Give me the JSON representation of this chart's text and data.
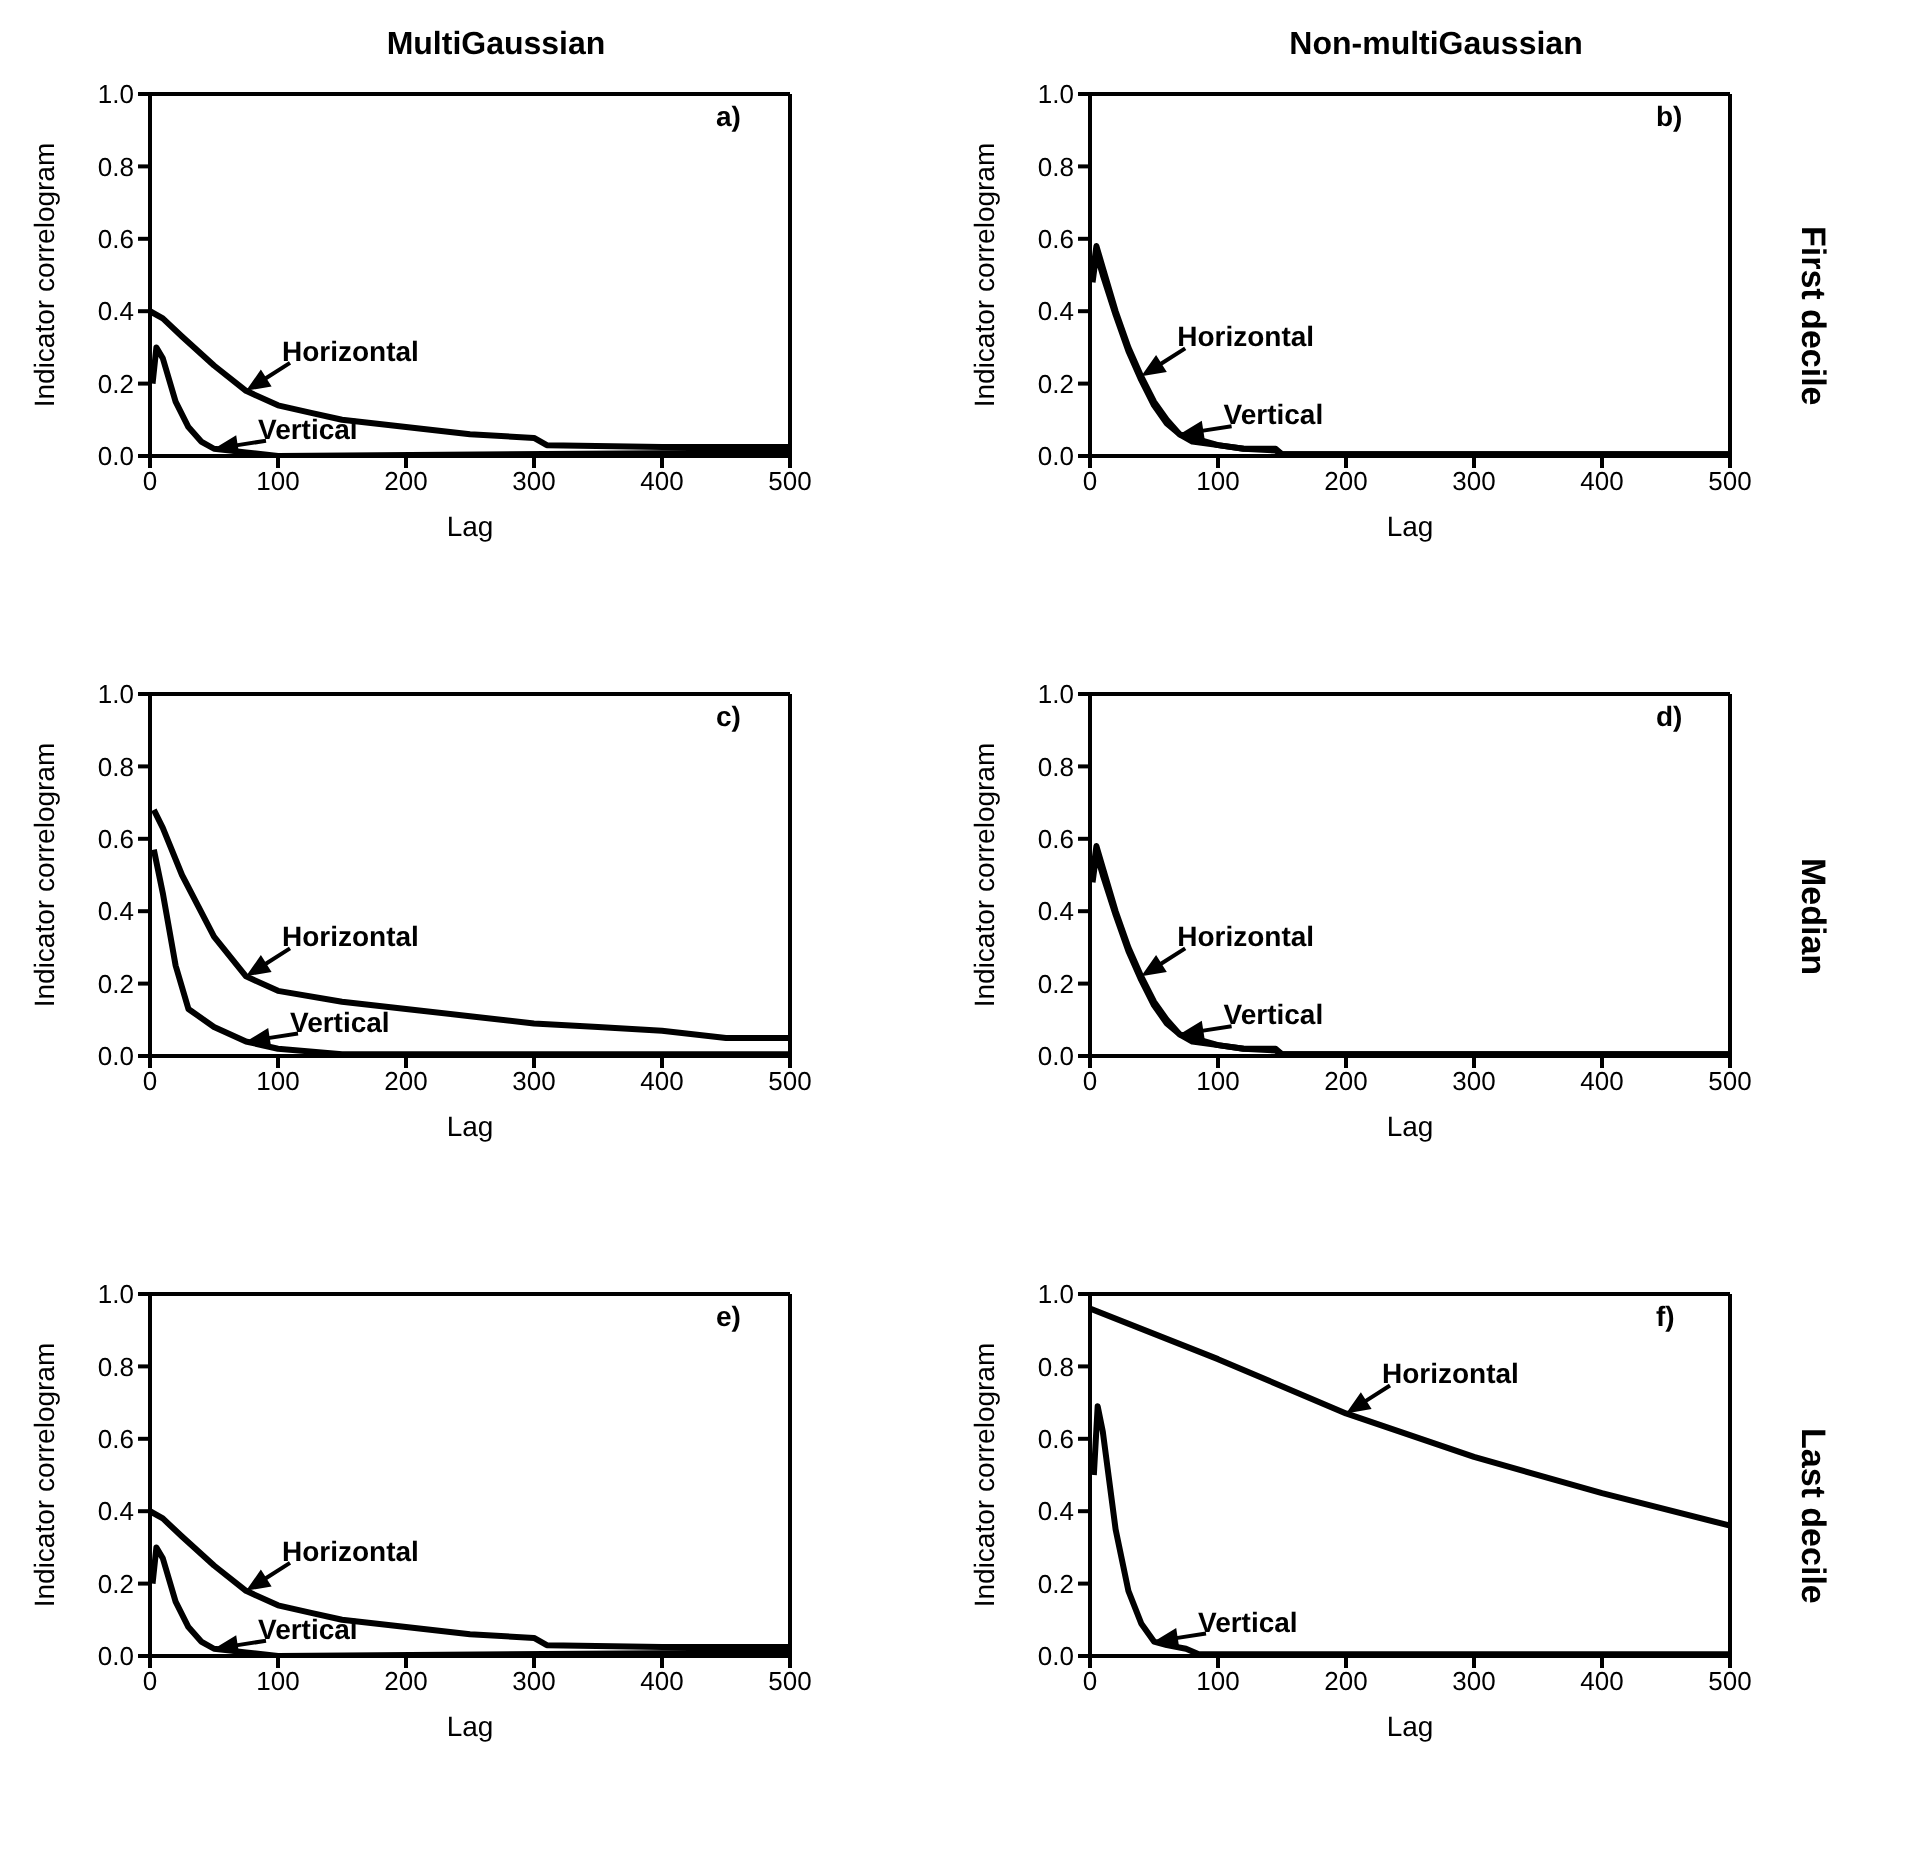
{
  "chart_data": [
    {
      "type": "line",
      "title": "MultiGaussian",
      "xlabel": "Lag",
      "ylabel": "Indicator correlogram",
      "xlim": [
        0,
        500
      ],
      "ylim": [
        0,
        1
      ],
      "xticks": [
        0,
        100,
        200,
        300,
        400,
        500
      ],
      "yticks": [
        {
          "value": 0,
          "label": "0.0"
        },
        {
          "value": 0.2,
          "label": "0.2"
        },
        {
          "value": 0.4,
          "label": "0.4"
        },
        {
          "value": 0.6,
          "label": "0.6"
        },
        {
          "value": 0.8,
          "label": "0.8"
        },
        {
          "value": 1,
          "label": "1.0"
        }
      ],
      "marker": "none",
      "annotations": [
        "a)"
      ],
      "series": [
        {
          "name": "Horizontal",
          "color": "#000000",
          "x": [
            0,
            10,
            25,
            50,
            75,
            100,
            125,
            150,
            200,
            250,
            300,
            310,
            400,
            500
          ],
          "values": [
            0.4,
            0.38,
            0.33,
            0.25,
            0.18,
            0.14,
            0.12,
            0.1,
            0.08,
            0.06,
            0.05,
            0.03,
            0.025,
            0.025
          ]
        },
        {
          "name": "Vertical",
          "color": "#000000",
          "x": [
            2,
            5,
            10,
            20,
            30,
            40,
            50,
            75,
            100,
            500
          ],
          "values": [
            0.2,
            0.3,
            0.27,
            0.15,
            0.08,
            0.04,
            0.02,
            0.01,
            0,
            0.01
          ]
        }
      ]
    },
    {
      "type": "line",
      "title": "Non-multiGaussian",
      "xlabel": "Lag",
      "ylabel": "Indicator correlogram",
      "xlim": [
        0,
        500
      ],
      "ylim": [
        0,
        1
      ],
      "xticks": [
        0,
        100,
        200,
        300,
        400,
        500
      ],
      "yticks": [
        {
          "value": 0,
          "label": "0.0"
        },
        {
          "value": 0.2,
          "label": "0.2"
        },
        {
          "value": 0.4,
          "label": "0.4"
        },
        {
          "value": 0.6,
          "label": "0.6"
        },
        {
          "value": 0.8,
          "label": "0.8"
        },
        {
          "value": 1,
          "label": "1.0"
        }
      ],
      "marker": "none",
      "annotations": [
        "b)",
        "First decile"
      ],
      "series": [
        {
          "name": "Horizontal",
          "color": "#000000",
          "x": [
            2,
            5,
            10,
            20,
            30,
            40,
            50,
            60,
            70,
            80,
            100,
            120,
            145,
            150,
            500
          ],
          "values": [
            0.5,
            0.58,
            0.52,
            0.4,
            0.3,
            0.22,
            0.15,
            0.1,
            0.06,
            0.05,
            0.03,
            0.02,
            0.02,
            0.005,
            0.005
          ]
        },
        {
          "name": "Vertical",
          "color": "#000000",
          "x": [
            2,
            5,
            10,
            20,
            30,
            40,
            50,
            60,
            70,
            80,
            100,
            120,
            145,
            150,
            500
          ],
          "values": [
            0.48,
            0.56,
            0.5,
            0.39,
            0.29,
            0.21,
            0.14,
            0.09,
            0.06,
            0.04,
            0.03,
            0.02,
            0.015,
            0.005,
            0.005
          ]
        }
      ]
    },
    {
      "type": "line",
      "xlabel": "Lag",
      "ylabel": "Indicator correlogram",
      "xlim": [
        0,
        500
      ],
      "ylim": [
        0,
        1
      ],
      "xticks": [
        0,
        100,
        200,
        300,
        400,
        500
      ],
      "yticks": [
        {
          "value": 0,
          "label": "0.0"
        },
        {
          "value": 0.2,
          "label": "0.2"
        },
        {
          "value": 0.4,
          "label": "0.4"
        },
        {
          "value": 0.6,
          "label": "0.6"
        },
        {
          "value": 0.8,
          "label": "0.8"
        },
        {
          "value": 1,
          "label": "1.0"
        }
      ],
      "marker": "none",
      "annotations": [
        "c)"
      ],
      "series": [
        {
          "name": "Horizontal",
          "color": "#000000",
          "x": [
            3,
            10,
            25,
            50,
            75,
            100,
            150,
            200,
            250,
            300,
            350,
            400,
            450,
            500
          ],
          "values": [
            0.68,
            0.63,
            0.5,
            0.33,
            0.22,
            0.18,
            0.15,
            0.13,
            0.11,
            0.09,
            0.08,
            0.07,
            0.05,
            0.05
          ]
        },
        {
          "name": "Vertical",
          "color": "#000000",
          "x": [
            3,
            10,
            20,
            30,
            50,
            75,
            100,
            150,
            500
          ],
          "values": [
            0.57,
            0.45,
            0.25,
            0.13,
            0.08,
            0.04,
            0.02,
            0.005,
            0.005
          ]
        }
      ]
    },
    {
      "type": "line",
      "xlabel": "Lag",
      "ylabel": "Indicator correlogram",
      "xlim": [
        0,
        500
      ],
      "ylim": [
        0,
        1
      ],
      "xticks": [
        0,
        100,
        200,
        300,
        400,
        500
      ],
      "yticks": [
        {
          "value": 0,
          "label": "0.0"
        },
        {
          "value": 0.2,
          "label": "0.2"
        },
        {
          "value": 0.4,
          "label": "0.4"
        },
        {
          "value": 0.6,
          "label": "0.6"
        },
        {
          "value": 0.8,
          "label": "0.8"
        },
        {
          "value": 1,
          "label": "1.0"
        }
      ],
      "marker": "none",
      "annotations": [
        "d)",
        "Median"
      ],
      "series": [
        {
          "name": "Horizontal",
          "color": "#000000",
          "x": [
            2,
            5,
            10,
            20,
            30,
            40,
            50,
            60,
            70,
            80,
            100,
            120,
            145,
            150,
            500
          ],
          "values": [
            0.5,
            0.58,
            0.52,
            0.4,
            0.3,
            0.22,
            0.15,
            0.1,
            0.06,
            0.05,
            0.03,
            0.02,
            0.02,
            0.005,
            0.005
          ]
        },
        {
          "name": "Vertical",
          "color": "#000000",
          "x": [
            2,
            5,
            10,
            20,
            30,
            40,
            50,
            60,
            70,
            80,
            100,
            120,
            145,
            150,
            500
          ],
          "values": [
            0.48,
            0.56,
            0.5,
            0.39,
            0.29,
            0.21,
            0.14,
            0.09,
            0.06,
            0.04,
            0.03,
            0.02,
            0.015,
            0.005,
            0.005
          ]
        }
      ]
    },
    {
      "type": "line",
      "xlabel": "Lag",
      "ylabel": "Indicator correlogram",
      "xlim": [
        0,
        500
      ],
      "ylim": [
        0,
        1
      ],
      "xticks": [
        0,
        100,
        200,
        300,
        400,
        500
      ],
      "yticks": [
        {
          "value": 0,
          "label": "0.0"
        },
        {
          "value": 0.2,
          "label": "0.2"
        },
        {
          "value": 0.4,
          "label": "0.4"
        },
        {
          "value": 0.6,
          "label": "0.6"
        },
        {
          "value": 0.8,
          "label": "0.8"
        },
        {
          "value": 1,
          "label": "1.0"
        }
      ],
      "marker": "none",
      "annotations": [
        "e)"
      ],
      "series": [
        {
          "name": "Horizontal",
          "color": "#000000",
          "x": [
            0,
            10,
            25,
            50,
            75,
            100,
            125,
            150,
            200,
            250,
            300,
            310,
            400,
            500
          ],
          "values": [
            0.4,
            0.38,
            0.33,
            0.25,
            0.18,
            0.14,
            0.12,
            0.1,
            0.08,
            0.06,
            0.05,
            0.03,
            0.025,
            0.025
          ]
        },
        {
          "name": "Vertical",
          "color": "#000000",
          "x": [
            2,
            5,
            10,
            20,
            30,
            40,
            50,
            75,
            100,
            500
          ],
          "values": [
            0.2,
            0.3,
            0.27,
            0.15,
            0.08,
            0.04,
            0.02,
            0.01,
            0,
            0.01
          ]
        }
      ]
    },
    {
      "type": "line",
      "xlabel": "Lag",
      "ylabel": "Indicator correlogram",
      "xlim": [
        0,
        500
      ],
      "ylim": [
        0,
        1
      ],
      "xticks": [
        0,
        100,
        200,
        300,
        400,
        500
      ],
      "yticks": [
        {
          "value": 0,
          "label": "0.0"
        },
        {
          "value": 0.2,
          "label": "0.2"
        },
        {
          "value": 0.4,
          "label": "0.4"
        },
        {
          "value": 0.6,
          "label": "0.6"
        },
        {
          "value": 0.8,
          "label": "0.8"
        },
        {
          "value": 1,
          "label": "1.0"
        }
      ],
      "marker": "none",
      "annotations": [
        "f)",
        "Last decile"
      ],
      "series": [
        {
          "name": "Horizontal",
          "color": "#000000",
          "x": [
            0,
            100,
            200,
            300,
            400,
            500
          ],
          "values": [
            0.96,
            0.82,
            0.67,
            0.55,
            0.45,
            0.36
          ]
        },
        {
          "name": "Vertical",
          "color": "#000000",
          "x": [
            3,
            6,
            10,
            20,
            30,
            40,
            50,
            60,
            75,
            85,
            500
          ],
          "values": [
            0.5,
            0.69,
            0.62,
            0.35,
            0.18,
            0.09,
            0.04,
            0.03,
            0.02,
            0.005,
            0.005
          ]
        }
      ]
    }
  ]
}
